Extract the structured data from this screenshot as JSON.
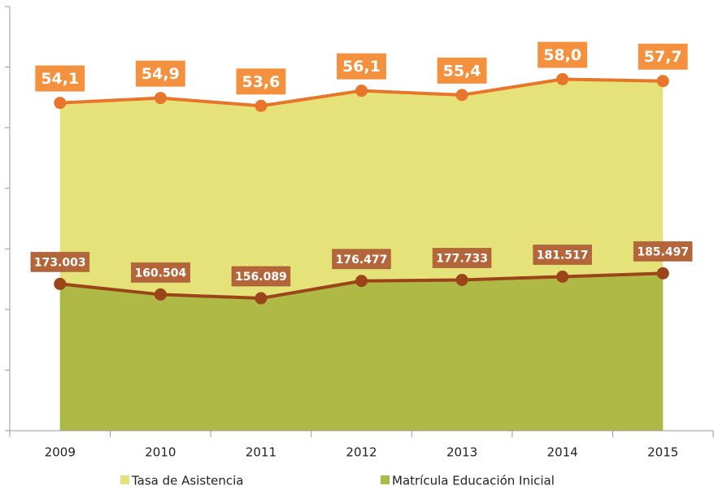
{
  "chart_data": {
    "type": "area",
    "categories": [
      "2009",
      "2010",
      "2011",
      "2012",
      "2013",
      "2014",
      "2015"
    ],
    "series": [
      {
        "name": "Tasa de Asistencia",
        "color": "#e6e27a",
        "line_color": "#e8752a",
        "label_color": "#f4913f",
        "values": [
          54.1,
          54.9,
          53.6,
          56.1,
          55.4,
          58.0,
          57.7
        ],
        "value_labels": [
          "54,1",
          "54,9",
          "53,6",
          "56,1",
          "55,4",
          "58,0",
          "57,7"
        ]
      },
      {
        "name": "Matrícula Educación Inicial",
        "axis": "y2",
        "color": "#afb945",
        "line_color": "#9c4419",
        "label_color": "#b5653a",
        "values": [
          173003,
          160504,
          156089,
          176477,
          177733,
          181517,
          185497
        ],
        "value_labels": [
          "173.003",
          "160.504",
          "156.089",
          "176.477",
          "177.733",
          "181.517",
          "185.497"
        ]
      }
    ],
    "ylim": [
      0,
      70
    ],
    "yticks": [
      0,
      10,
      20,
      30,
      40,
      50,
      60,
      70
    ],
    "y2lim": [
      0,
      500000
    ],
    "legend": "bottom"
  }
}
